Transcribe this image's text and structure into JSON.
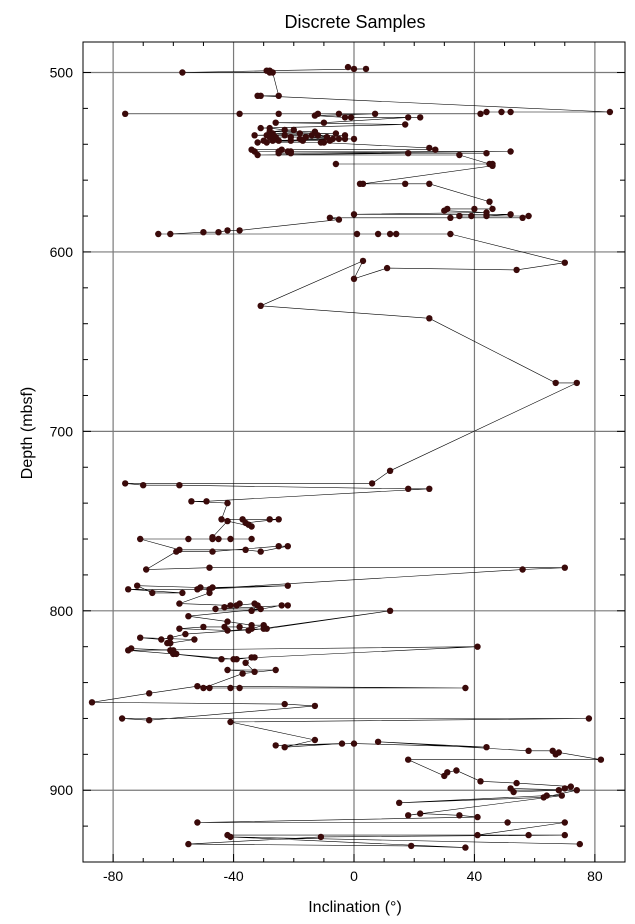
{
  "chart_data": {
    "type": "line",
    "title": "Discrete Samples",
    "xlabel": "Inclination (°)",
    "ylabel": "Depth (mbsf)",
    "xlim": [
      -90,
      90
    ],
    "ylim": [
      940,
      483
    ],
    "y_inverted": true,
    "grid": true,
    "x_major_ticks": [
      -80,
      -40,
      0,
      40,
      80
    ],
    "x_minor_step": 10,
    "y_major_ticks": [
      500,
      600,
      700,
      800,
      900
    ],
    "y_minor_step": 20,
    "colors": {
      "marker": "#3a0a0a",
      "line": "#000000",
      "grid": "#7a7a7a",
      "axis": "#000000"
    },
    "series": [
      {
        "points": [
          [
            -2,
            497
          ],
          [
            0,
            498
          ],
          [
            4,
            498
          ],
          [
            -29,
            499
          ],
          [
            -28,
            499
          ],
          [
            -57,
            500
          ],
          [
            -28,
            500
          ],
          [
            -27,
            500
          ],
          [
            -25,
            513
          ],
          [
            -32,
            513
          ],
          [
            -31,
            513
          ],
          [
            85,
            522
          ],
          [
            52,
            522
          ],
          [
            49,
            522
          ],
          [
            44,
            522
          ],
          [
            42,
            523
          ],
          [
            -76,
            523
          ],
          [
            -38,
            523
          ],
          [
            -25,
            523
          ],
          [
            -12,
            523
          ],
          [
            -5,
            523
          ],
          [
            7,
            523
          ],
          [
            -13,
            524
          ],
          [
            -3,
            525
          ],
          [
            -1,
            525
          ],
          [
            22,
            525
          ],
          [
            18,
            525
          ],
          [
            -10,
            528
          ],
          [
            -26,
            528
          ],
          [
            17,
            529
          ],
          [
            -31,
            531
          ],
          [
            -28,
            531
          ],
          [
            -23,
            532
          ],
          [
            -20,
            532
          ],
          [
            -28,
            533
          ],
          [
            -13,
            533
          ],
          [
            -27,
            534
          ],
          [
            -18,
            534
          ],
          [
            -6,
            534
          ],
          [
            -33,
            535
          ],
          [
            -29,
            535
          ],
          [
            -14,
            535
          ],
          [
            -3,
            535
          ],
          [
            -23,
            535
          ],
          [
            -12,
            535
          ],
          [
            -9,
            536
          ],
          [
            -28,
            536
          ],
          [
            -26,
            536
          ],
          [
            -21,
            536
          ],
          [
            -16,
            536
          ],
          [
            -5,
            537
          ],
          [
            -18,
            537
          ],
          [
            -7,
            537
          ],
          [
            0,
            537
          ],
          [
            -3,
            537
          ],
          [
            -30,
            538
          ],
          [
            -27,
            538
          ],
          [
            -21,
            538
          ],
          [
            -25,
            538
          ],
          [
            -8,
            538
          ],
          [
            -17,
            538
          ],
          [
            -32,
            539
          ],
          [
            -10,
            539
          ],
          [
            -29,
            539
          ],
          [
            -11,
            539
          ],
          [
            25,
            542
          ],
          [
            27,
            543
          ],
          [
            -24,
            543
          ],
          [
            -34,
            543
          ],
          [
            -33,
            544
          ],
          [
            -22,
            544
          ],
          [
            -21,
            544
          ],
          [
            -25,
            544
          ],
          [
            52,
            544
          ],
          [
            -25,
            545
          ],
          [
            44,
            545
          ],
          [
            -21,
            545
          ],
          [
            18,
            545
          ],
          [
            -32,
            546
          ],
          [
            35,
            546
          ],
          [
            45,
            551
          ],
          [
            -6,
            551
          ],
          [
            46,
            551
          ],
          [
            46,
            552
          ],
          [
            3,
            562
          ],
          [
            2,
            562
          ],
          [
            17,
            562
          ],
          [
            25,
            562
          ],
          [
            45,
            572
          ],
          [
            46,
            576
          ],
          [
            40,
            576
          ],
          [
            31,
            576
          ],
          [
            30,
            577
          ],
          [
            44,
            578
          ],
          [
            0,
            579
          ],
          [
            52,
            579
          ],
          [
            44,
            580
          ],
          [
            39,
            580
          ],
          [
            35,
            580
          ],
          [
            58,
            580
          ],
          [
            56,
            581
          ],
          [
            32,
            581
          ],
          [
            -8,
            581
          ],
          [
            -5,
            582
          ],
          [
            -38,
            588
          ],
          [
            -42,
            588
          ],
          [
            -45,
            589
          ],
          [
            -50,
            589
          ],
          [
            -61,
            590
          ],
          [
            -65,
            590
          ],
          [
            1,
            590
          ],
          [
            8,
            590
          ],
          [
            14,
            590
          ],
          [
            12,
            590
          ],
          [
            32,
            590
          ],
          [
            70,
            606
          ],
          [
            54,
            610
          ],
          [
            11,
            609
          ],
          [
            0,
            615
          ],
          [
            3,
            605
          ],
          [
            -31,
            630
          ],
          [
            25,
            637
          ],
          [
            67,
            673
          ],
          [
            74,
            673
          ],
          [
            12,
            722
          ],
          [
            6,
            729
          ],
          [
            -76,
            729
          ],
          [
            -70,
            730
          ],
          [
            -58,
            730
          ],
          [
            18,
            732
          ],
          [
            25,
            732
          ],
          [
            -49,
            739
          ],
          [
            -54,
            739
          ],
          [
            -42,
            740
          ],
          [
            -44,
            749
          ],
          [
            -28,
            749
          ],
          [
            -37,
            749
          ],
          [
            -25,
            749
          ],
          [
            -36,
            751
          ],
          [
            -35,
            752
          ],
          [
            -34,
            753
          ],
          [
            -42,
            750
          ],
          [
            -47,
            759
          ],
          [
            -47,
            760
          ],
          [
            -34,
            760
          ],
          [
            -41,
            760
          ],
          [
            -45,
            760
          ],
          [
            -55,
            760
          ],
          [
            -71,
            760
          ],
          [
            -58,
            766
          ],
          [
            -36,
            766
          ],
          [
            -31,
            767
          ],
          [
            -22,
            764
          ],
          [
            -25,
            764
          ],
          [
            -47,
            767
          ],
          [
            -59,
            767
          ],
          [
            -69,
            777
          ],
          [
            -48,
            776
          ],
          [
            70,
            776
          ],
          [
            56,
            777
          ],
          [
            -52,
            788
          ],
          [
            -22,
            786
          ],
          [
            -47,
            787
          ],
          [
            -51,
            787
          ],
          [
            -72,
            786
          ],
          [
            -67,
            790
          ],
          [
            -57,
            790
          ],
          [
            -75,
            788
          ],
          [
            -48,
            788
          ],
          [
            -48,
            790
          ],
          [
            -58,
            796
          ],
          [
            -41,
            797
          ],
          [
            -43,
            798
          ],
          [
            -38,
            796
          ],
          [
            -39,
            797
          ],
          [
            -33,
            796
          ],
          [
            -32,
            797
          ],
          [
            -34,
            800
          ],
          [
            -24,
            797
          ],
          [
            -22,
            797
          ],
          [
            -46,
            799
          ],
          [
            -31,
            799
          ],
          [
            -55,
            803
          ],
          [
            -42,
            806
          ],
          [
            -34,
            808
          ],
          [
            -30,
            808
          ],
          [
            -34,
            810
          ],
          [
            -38,
            809
          ],
          [
            -43,
            809
          ],
          [
            -50,
            809
          ],
          [
            -58,
            810
          ],
          [
            -42,
            811
          ],
          [
            -30,
            810
          ],
          [
            -35,
            811
          ],
          [
            12,
            800
          ],
          [
            -29,
            810
          ],
          [
            -56,
            813
          ],
          [
            -61,
            815
          ],
          [
            -64,
            816
          ],
          [
            -71,
            815
          ],
          [
            -53,
            816
          ],
          [
            -61,
            818
          ],
          [
            -62,
            818
          ],
          [
            -60,
            822
          ],
          [
            -74,
            821
          ],
          [
            -61,
            822
          ],
          [
            -59,
            824
          ],
          [
            -60,
            824
          ],
          [
            -75,
            822
          ],
          [
            41,
            820
          ],
          [
            -44,
            827
          ],
          [
            -60,
            824
          ],
          [
            -40,
            827
          ],
          [
            -39,
            827
          ],
          [
            -33,
            826
          ],
          [
            -34,
            826
          ],
          [
            -36,
            829
          ],
          [
            -33,
            834
          ],
          [
            -42,
            833
          ],
          [
            -26,
            833
          ],
          [
            -37,
            835
          ],
          [
            -50,
            843
          ],
          [
            -48,
            843
          ],
          [
            -41,
            843
          ],
          [
            -38,
            843
          ],
          [
            37,
            843
          ],
          [
            -52,
            842
          ],
          [
            -68,
            846
          ],
          [
            -87,
            851
          ],
          [
            -23,
            852
          ],
          [
            -13,
            853
          ],
          [
            -68,
            861
          ],
          [
            -77,
            860
          ],
          [
            78,
            860
          ],
          [
            -41,
            862
          ],
          [
            -13,
            872
          ],
          [
            -23,
            876
          ],
          [
            -4,
            874
          ],
          [
            -26,
            875
          ],
          [
            0,
            874
          ],
          [
            44,
            876
          ],
          [
            8,
            873
          ],
          [
            58,
            878
          ],
          [
            66,
            878
          ],
          [
            67,
            880
          ],
          [
            68,
            879
          ],
          [
            82,
            883
          ],
          [
            18,
            883
          ],
          [
            30,
            892
          ],
          [
            31,
            890
          ],
          [
            34,
            889
          ],
          [
            42,
            895
          ],
          [
            54,
            896
          ],
          [
            72,
            898
          ],
          [
            70,
            899
          ],
          [
            68,
            900
          ],
          [
            53,
            901
          ],
          [
            52,
            899
          ],
          [
            74,
            900
          ],
          [
            63,
            904
          ],
          [
            15,
            907
          ],
          [
            64,
            903
          ],
          [
            69,
            903
          ],
          [
            18,
            914
          ],
          [
            22,
            913
          ],
          [
            35,
            914
          ],
          [
            41,
            915
          ],
          [
            -52,
            918
          ],
          [
            51,
            918
          ],
          [
            70,
            918
          ],
          [
            41,
            925
          ],
          [
            -42,
            925
          ],
          [
            58,
            925
          ],
          [
            70,
            925
          ],
          [
            -11,
            926
          ],
          [
            -55,
            930
          ],
          [
            19,
            931
          ],
          [
            37,
            932
          ],
          [
            -41,
            926
          ],
          [
            75,
            930
          ]
        ]
      }
    ]
  }
}
